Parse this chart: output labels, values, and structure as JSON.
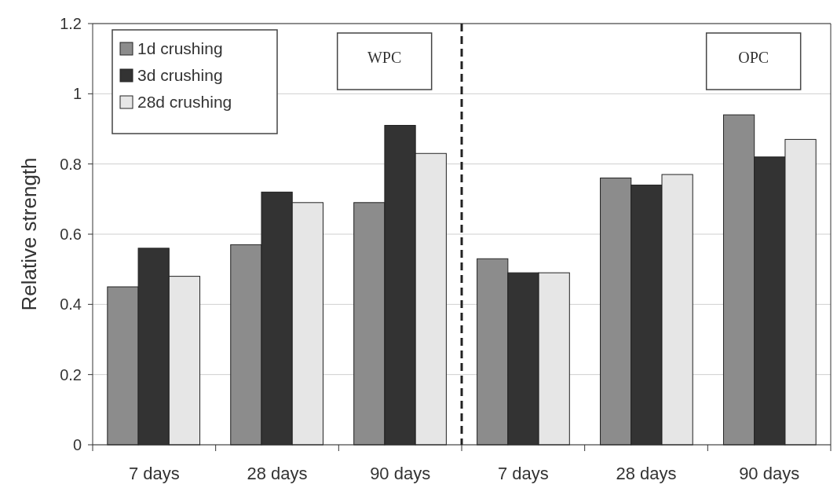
{
  "chart_data": {
    "type": "bar",
    "ylabel": "Relative strength",
    "categories": [
      "7 days",
      "28 days",
      "90 days",
      "7 days",
      "28 days",
      "90 days"
    ],
    "series": [
      {
        "name": "1d crushing",
        "color": "#8c8c8c",
        "values": [
          0.45,
          0.57,
          0.69,
          0.53,
          0.76,
          0.94
        ]
      },
      {
        "name": "3d crushing",
        "color": "#333333",
        "values": [
          0.56,
          0.72,
          0.91,
          0.49,
          0.74,
          0.82
        ]
      },
      {
        "name": "28d crushing",
        "color": "#e6e6e6",
        "values": [
          0.48,
          0.69,
          0.83,
          0.49,
          0.77,
          0.87
        ]
      }
    ],
    "ylim": [
      0,
      1.2
    ],
    "yticks": [
      0,
      {
        "value": 0.2,
        "label": "0.2"
      },
      {
        "value": 0.4,
        "label": "0.4"
      },
      {
        "value": 0.6,
        "label": "0.6"
      },
      {
        "value": 0.8,
        "label": "0.8"
      },
      1,
      {
        "value": 1.2,
        "label": "1.2"
      }
    ],
    "grid": "y",
    "legend": "top left",
    "annotations": [
      "WPC",
      "OPC"
    ]
  }
}
